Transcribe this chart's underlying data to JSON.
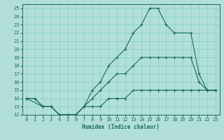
{
  "background_color": "#b2dfdb",
  "grid_color": "#7ececa",
  "line_color": "#1a6b5e",
  "xlim": [
    -0.5,
    23.5
  ],
  "ylim": [
    12,
    25.5
  ],
  "xticks": [
    0,
    1,
    2,
    3,
    4,
    5,
    6,
    7,
    8,
    9,
    10,
    11,
    12,
    13,
    14,
    15,
    16,
    17,
    18,
    19,
    20,
    21,
    22,
    23
  ],
  "yticks": [
    12,
    13,
    14,
    15,
    16,
    17,
    18,
    19,
    20,
    21,
    22,
    23,
    24,
    25
  ],
  "xlabel": "Humidex (Indice chaleur)",
  "tick_fontsize": 5.0,
  "xlabel_fontsize": 5.5,
  "series": [
    {
      "x": [
        0,
        1,
        2,
        3,
        4,
        5,
        6,
        7,
        8,
        9,
        10,
        11,
        12,
        13,
        14,
        15,
        16,
        17,
        18,
        19,
        20,
        21,
        22,
        23
      ],
      "y": [
        14,
        14,
        13,
        13,
        12,
        12,
        12,
        13,
        13,
        13,
        14,
        14,
        14,
        15,
        15,
        15,
        15,
        15,
        15,
        15,
        15,
        15,
        15,
        15
      ]
    },
    {
      "x": [
        0,
        1,
        2,
        3,
        4,
        5,
        6,
        7,
        8,
        9,
        10,
        11,
        12,
        13,
        14,
        15,
        16,
        17,
        18,
        19,
        20,
        21,
        22,
        23
      ],
      "y": [
        14,
        14,
        13,
        13,
        12,
        12,
        12,
        13,
        14,
        15,
        16,
        17,
        17,
        18,
        19,
        19,
        19,
        19,
        19,
        19,
        19,
        16,
        15,
        15
      ]
    },
    {
      "x": [
        0,
        2,
        3,
        4,
        5,
        6,
        7,
        8,
        9,
        10,
        11,
        12,
        13,
        14,
        15,
        16,
        17,
        18,
        20,
        21,
        22,
        23
      ],
      "y": [
        14,
        13,
        13,
        12,
        12,
        12,
        13,
        15,
        16,
        18,
        19,
        20,
        22,
        23,
        25,
        25,
        23,
        22,
        22,
        17,
        15,
        15
      ]
    }
  ]
}
